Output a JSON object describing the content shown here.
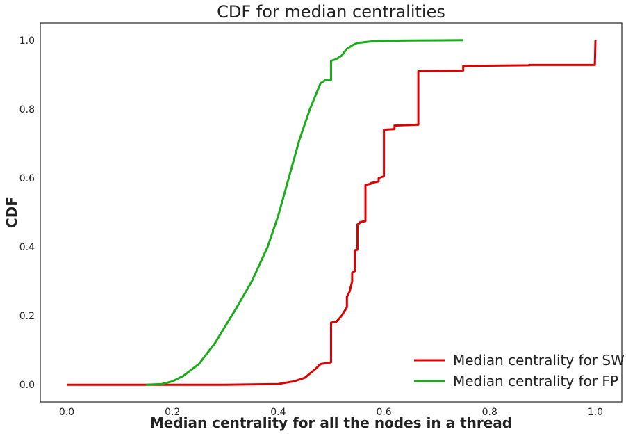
{
  "chart_data": {
    "type": "line",
    "title": "CDF for median centralities",
    "xlabel": "Median centrality for all the nodes in a thread",
    "ylabel": "CDF",
    "xlim": [
      -0.05,
      1.05
    ],
    "ylim": [
      -0.05,
      1.05
    ],
    "x_ticks": [
      0.0,
      0.2,
      0.4,
      0.6,
      0.8,
      1.0
    ],
    "x_tick_labels": [
      "0.0",
      "0.2",
      "0.4",
      "0.6",
      "0.8",
      "1.0"
    ],
    "y_ticks": [
      0.0,
      0.2,
      0.4,
      0.6,
      0.8,
      1.0
    ],
    "y_tick_labels": [
      "0.0",
      "0.2",
      "0.4",
      "0.6",
      "0.8",
      "1.0"
    ],
    "grid": false,
    "legend_position": "bottom-right",
    "series": [
      {
        "name": "Median centrality for SW",
        "color": "#dd0000",
        "x": [
          0.0,
          0.3,
          0.4,
          0.43,
          0.45,
          0.47,
          0.48,
          0.5,
          0.5,
          0.51,
          0.52,
          0.53,
          0.53,
          0.535,
          0.54,
          0.54,
          0.545,
          0.545,
          0.55,
          0.55,
          0.555,
          0.555,
          0.565,
          0.565,
          0.575,
          0.575,
          0.59,
          0.59,
          0.6,
          0.6,
          0.62,
          0.62,
          0.665,
          0.665,
          0.75,
          0.75,
          0.875,
          0.875,
          0.999,
          1.0
        ],
        "y": [
          0.0,
          0.0,
          0.002,
          0.01,
          0.02,
          0.045,
          0.06,
          0.065,
          0.18,
          0.183,
          0.2,
          0.225,
          0.255,
          0.27,
          0.3,
          0.325,
          0.33,
          0.39,
          0.392,
          0.465,
          0.47,
          0.472,
          0.475,
          0.58,
          0.583,
          0.585,
          0.59,
          0.6,
          0.605,
          0.74,
          0.742,
          0.752,
          0.755,
          0.91,
          0.912,
          0.925,
          0.927,
          0.928,
          0.928,
          1.0
        ]
      },
      {
        "name": "Median centrality for FP",
        "color": "#1aab1a",
        "x": [
          0.15,
          0.18,
          0.2,
          0.22,
          0.25,
          0.28,
          0.3,
          0.32,
          0.35,
          0.38,
          0.4,
          0.42,
          0.44,
          0.46,
          0.48,
          0.49,
          0.5,
          0.5,
          0.51,
          0.52,
          0.53,
          0.54,
          0.55,
          0.58,
          0.6,
          0.65,
          0.75
        ],
        "y": [
          0.0,
          0.002,
          0.01,
          0.025,
          0.06,
          0.12,
          0.17,
          0.22,
          0.3,
          0.4,
          0.49,
          0.6,
          0.71,
          0.8,
          0.875,
          0.885,
          0.885,
          0.94,
          0.945,
          0.955,
          0.975,
          0.985,
          0.992,
          0.997,
          0.998,
          0.999,
          1.0
        ]
      }
    ]
  }
}
